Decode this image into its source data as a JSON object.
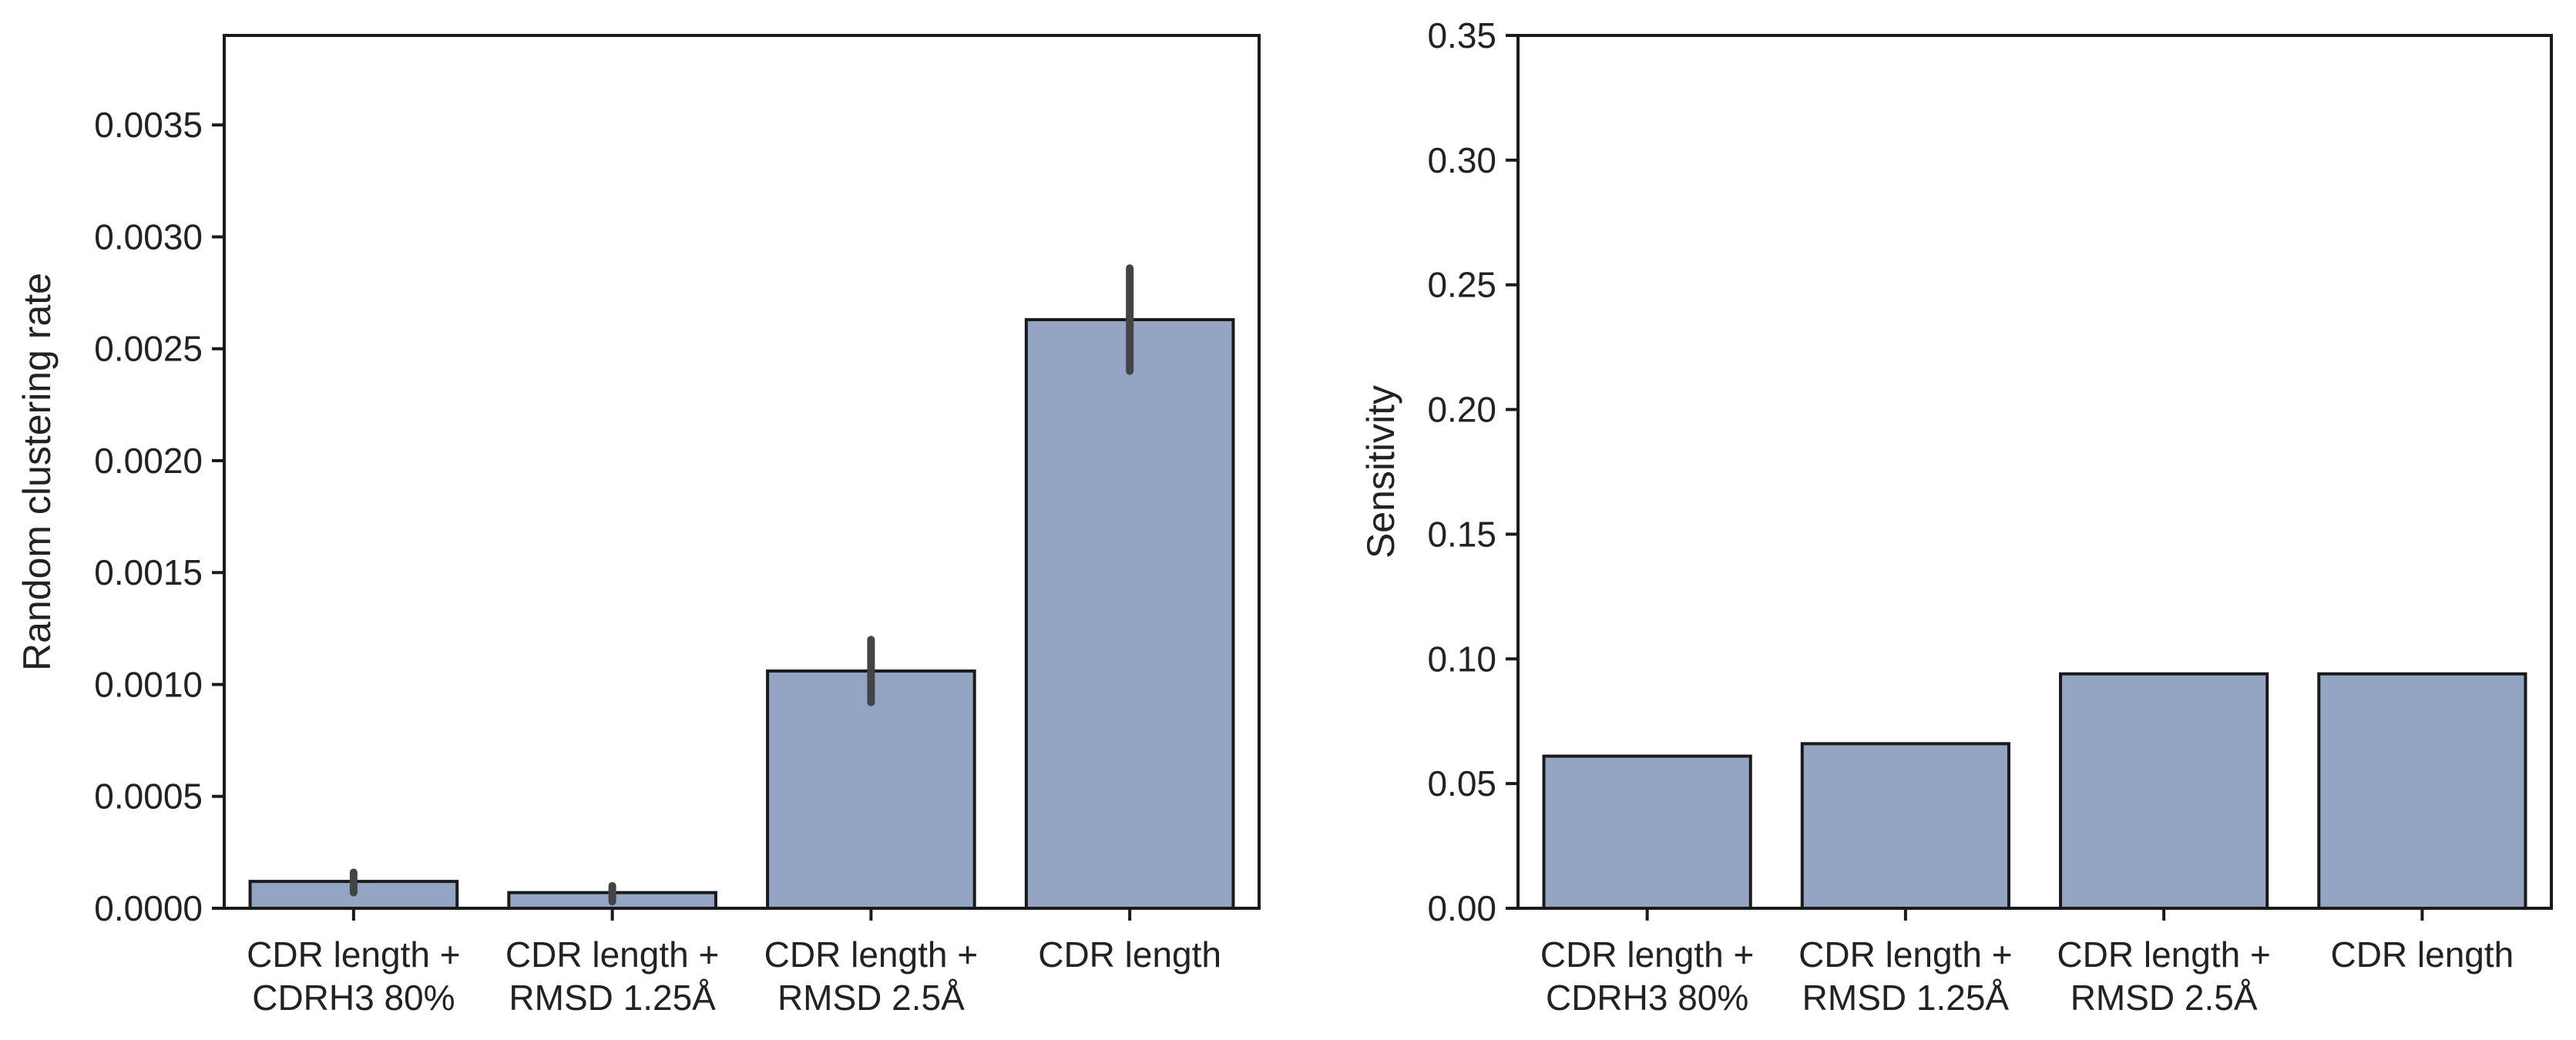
{
  "chart_data": [
    {
      "type": "bar",
      "categories": [
        [
          "CDR length +",
          "CDRH3 80%"
        ],
        [
          "CDR length +",
          "RMSD 1.25Å"
        ],
        [
          "CDR length +",
          "RMSD 2.5Å"
        ],
        [
          "CDR length"
        ]
      ],
      "values": [
        0.00012,
        7e-05,
        0.00106,
        0.00263
      ],
      "error_bars": [
        [
          7e-05,
          0.00016
        ],
        [
          3e-05,
          0.0001
        ],
        [
          0.00092,
          0.0012
        ],
        [
          0.0024,
          0.00286
        ]
      ],
      "ylabel": "Random clustering rate",
      "xlabel": "",
      "ylim": [
        0,
        0.0039
      ],
      "yticks": [
        "0.0000",
        "0.0005",
        "0.0010",
        "0.0015",
        "0.0020",
        "0.0025",
        "0.0030",
        "0.0035"
      ],
      "bar_color": "#94a4c3",
      "error_color": "#444444",
      "grid": false
    },
    {
      "type": "bar",
      "categories": [
        [
          "CDR length +",
          "CDRH3 80%"
        ],
        [
          "CDR length +",
          "RMSD 1.25Å"
        ],
        [
          "CDR length +",
          "RMSD 2.5Å"
        ],
        [
          "CDR length"
        ]
      ],
      "values": [
        0.061,
        0.066,
        0.094,
        0.094
      ],
      "ylabel": "Sensitivity",
      "xlabel": "",
      "ylim": [
        0,
        0.35
      ],
      "yticks": [
        "0.00",
        "0.05",
        "0.10",
        "0.15",
        "0.20",
        "0.25",
        "0.30",
        "0.35"
      ],
      "bar_color": "#94a4c3",
      "grid": false
    }
  ]
}
